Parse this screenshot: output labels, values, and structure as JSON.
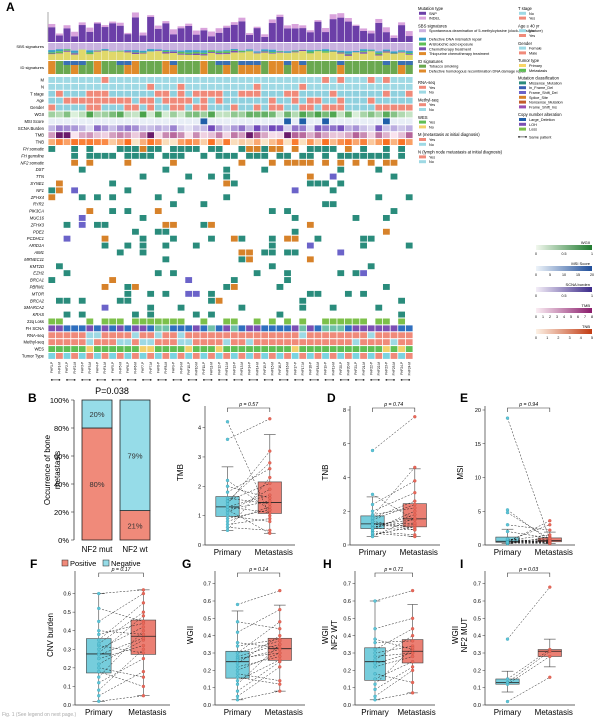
{
  "panel_letters": [
    "A",
    "B",
    "C",
    "D",
    "E",
    "F",
    "G",
    "H",
    "I"
  ],
  "colors": {
    "primary": "#5ec4d6",
    "metastasis": "#e8695a",
    "sbs_purple": "#7b4fb3",
    "snv_purple": "#6c3fa8",
    "indel_pink": "#d9a3dc",
    "teal": "#2a8c7c",
    "green": "#5fbf55",
    "orange": "#e08a2a",
    "blue": "#2f6fbf",
    "yellow_green": "#b7d23e",
    "salmon": "#f08a7a",
    "gray": "#bdbdbd"
  },
  "panelA": {
    "row_labels": [
      "",
      "SBS signatures",
      "ID signatures",
      "M",
      "N",
      "T stage",
      "Age",
      "Gender",
      "WGII",
      "MSI Score",
      "SCNA Burden",
      "TMB",
      "TNB",
      "FH somatic",
      "FH germline",
      "NF2 somatic",
      "DST",
      "TTN",
      "SYNE1",
      "NF1",
      "ZFHX4",
      "RYR2",
      "PIK3CA",
      "MUC16",
      "ZFHX3",
      "PDE2",
      "PCDHC1",
      "ARID1A",
      "AIM1",
      "MRNEC11",
      "KMT2D",
      "EZH2",
      "BRCA1",
      "PBRM1",
      "MTOR",
      "BRCA2",
      "SMARCA2",
      "KRAS",
      "22q Loss",
      "FH SCNA",
      "RNA-seq",
      "Methyl-seq",
      "WES",
      "Tumor Type"
    ],
    "sample_ids": [
      "FHF1-P",
      "FHF1-M",
      "FHF2-P",
      "FHF2-M",
      "FHF3-P",
      "FHF3-M",
      "FHF4-P",
      "FHF4-M",
      "FHF5-P",
      "FHF5-M",
      "FHF6-P",
      "FHF6-M",
      "FHF7-P",
      "FHF7-M",
      "FHF8-P",
      "FHF8-M",
      "FHF9-P",
      "FHF9-M",
      "FHF10-P",
      "FHF10-M",
      "FHF11-P",
      "FHF11-M",
      "FHF12-P",
      "FHF12-M",
      "FHF13-P",
      "FHF13-M",
      "FHF14-P",
      "FHF14-M",
      "FHF15-P",
      "FHF15-M",
      "FHF16-P",
      "FHF16-M",
      "FHF17-P",
      "FHF17-M",
      "FHF18-P",
      "FHF18-M",
      "FHF19-P",
      "FHF19-M",
      "FHF20-P",
      "FHF20-M",
      "FHF21-P",
      "FHF21-M",
      "FHF22-P",
      "FHF22-M",
      "FHF23-P",
      "FHF23-M",
      "FHF24-P",
      "FHF24-M"
    ],
    "legend_mid": {
      "mutation_type": {
        "title": "Mutation type",
        "items": [
          "SNP",
          "INDEL"
        ]
      },
      "sbs": {
        "title": "SBS signatures",
        "items": [
          "Spontaneous deamination of 5-methylcytosine (clock-like signature)",
          "Defective DNA mismatch repair",
          "Aristolochic acid exposure",
          "Chemotherapy treatment",
          "Thiopurine chemotherapy treatment"
        ]
      },
      "id": {
        "title": "ID signatures",
        "items": [
          "Tobacco smoking",
          "Defective homologous recombination DNA damage repair"
        ]
      },
      "rna": {
        "title": "RNA-seq",
        "items": [
          "Yes",
          "No"
        ]
      },
      "methyl": {
        "title": "Methyl-seq",
        "items": [
          "Yes",
          "No"
        ]
      },
      "wes": {
        "title": "WES",
        "items": [
          "Yes",
          "No"
        ]
      },
      "m": {
        "title": "M (metastasis at initial diagnosis)",
        "items": [
          "Yes",
          "No"
        ]
      },
      "n": {
        "title": "N (lymph node metastasis at initial diagnosis)",
        "items": [
          "Yes",
          "No"
        ]
      }
    },
    "legend_right": {
      "tstage": {
        "title": "T stage",
        "items": [
          "No",
          "Yes"
        ]
      },
      "age": {
        "title": "Age ≥ 40 yr",
        "items": [
          "No",
          "Yes"
        ]
      },
      "gender": {
        "title": "Gender",
        "items": [
          "Female",
          "Male"
        ]
      },
      "tumor": {
        "title": "Tumor type",
        "items": [
          "Primary",
          "Metastasis"
        ]
      },
      "mutclass": {
        "title": "Mutation classification",
        "items": [
          "Missense_Mutation",
          "In_Frame_Del",
          "Frame_Shift_Del",
          "Splice_Site",
          "Nonsense_Mutation",
          "Frame_Shift_Ins"
        ]
      },
      "cna": {
        "title": "Copy number alteration",
        "items": [
          "Large_Deletion",
          "LOH",
          "Loss"
        ]
      },
      "same_patient": "Same patient",
      "bars": [
        {
          "title": "WGII",
          "ticks": [
            "0",
            "0.5",
            "1"
          ]
        },
        {
          "title": "MSI Score",
          "ticks": [
            "0",
            "5",
            "10",
            "15",
            "20"
          ]
        },
        {
          "title": "SCNA burden",
          "ticks": [
            "0",
            "0.5",
            "1"
          ]
        },
        {
          "title": "TMB",
          "ticks": [
            "0",
            "1",
            "2",
            "3",
            "4",
            "5",
            "6",
            "7",
            "8"
          ]
        },
        {
          "title": "TNB",
          "ticks": [
            "0",
            "1",
            "2",
            "3",
            "4",
            "5"
          ]
        }
      ]
    }
  },
  "chart_data": [
    {
      "panel": "B",
      "type": "bar",
      "stacked": true,
      "title": "P=0.038",
      "ylabel": "Occurrence of bone metastasis",
      "yticks": [
        "0%",
        "20%",
        "40%",
        "60%",
        "80%",
        "100%"
      ],
      "categories": [
        "NF2 mut",
        "NF2 wt"
      ],
      "series": [
        {
          "name": "Positive",
          "values": [
            80,
            21
          ],
          "labels": [
            "80%",
            "21%"
          ]
        },
        {
          "name": "Negative",
          "values": [
            20,
            79
          ],
          "labels": [
            "20%",
            "79%"
          ]
        }
      ],
      "ylim": [
        0,
        100
      ]
    },
    {
      "panel": "C",
      "type": "box",
      "ylabel": "TMB",
      "pvalue": "p = 0.57",
      "categories": [
        "Primary",
        "Metastasis"
      ],
      "ylim": [
        0,
        4.6
      ],
      "yticks": [
        "0",
        "1",
        "2",
        "3",
        "4"
      ],
      "pairs": [
        [
          0.6,
          0.5
        ],
        [
          1.3,
          1.7
        ],
        [
          1.2,
          1.5
        ],
        [
          1.5,
          2.1
        ],
        [
          0.9,
          1.2
        ],
        [
          1.0,
          0.8
        ],
        [
          1.8,
          2.6
        ],
        [
          1.4,
          3.2
        ],
        [
          2.2,
          1.2
        ],
        [
          1.1,
          1.9
        ],
        [
          0.7,
          0.9
        ],
        [
          1.6,
          1.4
        ],
        [
          0.5,
          2.3
        ],
        [
          1.3,
          1.1
        ],
        [
          2.0,
          1.6
        ],
        [
          3.6,
          4.3
        ],
        [
          4.2,
          1.0
        ],
        [
          1.2,
          0.4
        ],
        [
          0.8,
          1.3
        ],
        [
          1.5,
          2.8
        ]
      ]
    },
    {
      "panel": "D",
      "type": "box",
      "ylabel": "TNB",
      "pvalue": "p = 0.74",
      "categories": [
        "Primary",
        "Metastasis"
      ],
      "ylim": [
        0,
        8
      ],
      "yticks": [
        "0",
        "2",
        "4",
        "6",
        "8"
      ],
      "pairs": [
        [
          0.8,
          0.6
        ],
        [
          1.2,
          1.5
        ],
        [
          1.0,
          1.8
        ],
        [
          1.5,
          2.4
        ],
        [
          0.6,
          1.1
        ],
        [
          1.3,
          0.9
        ],
        [
          2.0,
          3.1
        ],
        [
          1.7,
          4.6
        ],
        [
          3.0,
          1.5
        ],
        [
          1.1,
          1.2
        ],
        [
          0.9,
          2.0
        ],
        [
          1.4,
          1.0
        ],
        [
          5.6,
          7.6
        ],
        [
          1.6,
          2.6
        ],
        [
          0.7,
          0.5
        ],
        [
          1.2,
          1.3
        ],
        [
          2.4,
          3.8
        ],
        [
          1.0,
          0.9
        ],
        [
          0.5,
          1.6
        ],
        [
          1.8,
          2.2
        ]
      ]
    },
    {
      "panel": "E",
      "type": "box",
      "ylabel": "MSI",
      "pvalue": "p = 0.94",
      "categories": [
        "Primary",
        "Metastasis"
      ],
      "ylim": [
        0,
        20
      ],
      "yticks": [
        "0",
        "5",
        "10",
        "15",
        "20"
      ],
      "pairs": [
        [
          0.3,
          0.5
        ],
        [
          0.5,
          0.4
        ],
        [
          0.2,
          1.2
        ],
        [
          5.2,
          0.6
        ],
        [
          0.4,
          0.3
        ],
        [
          0.6,
          3.0
        ],
        [
          4.8,
          0.9
        ],
        [
          0.3,
          0.2
        ],
        [
          0.7,
          1.5
        ],
        [
          18.8,
          0.8
        ],
        [
          0.5,
          0.4
        ],
        [
          3.0,
          2.2
        ],
        [
          0.8,
          0.6
        ],
        [
          0.4,
          3.6
        ],
        [
          0.6,
          0.5
        ],
        [
          2.0,
          1.0
        ],
        [
          0.3,
          0.7
        ],
        [
          0.9,
          0.3
        ],
        [
          0.5,
          0.9
        ],
        [
          0.4,
          0.6
        ]
      ]
    },
    {
      "panel": "F",
      "type": "box",
      "ylabel": "CNV burden",
      "pvalue": "p = 0.17",
      "categories": [
        "Primary",
        "Metastasis"
      ],
      "ylim": [
        0,
        0.7
      ],
      "yticks": [
        "0.0",
        "0.1",
        "0.2",
        "0.3",
        "0.4",
        "0.5",
        "0.6"
      ],
      "pairs": [
        [
          0.05,
          0.18
        ],
        [
          0.22,
          0.35
        ],
        [
          0.3,
          0.42
        ],
        [
          0.12,
          0.25
        ],
        [
          0.4,
          0.38
        ],
        [
          0.28,
          0.48
        ],
        [
          0.18,
          0.1
        ],
        [
          0.35,
          0.55
        ],
        [
          0.52,
          0.45
        ],
        [
          0.08,
          0.3
        ],
        [
          0.25,
          0.32
        ],
        [
          0.45,
          0.6
        ],
        [
          0.32,
          0.28
        ],
        [
          0.15,
          0.4
        ],
        [
          0.38,
          0.44
        ],
        [
          0.02,
          0.05
        ],
        [
          0.27,
          0.36
        ],
        [
          0.2,
          0.15
        ],
        [
          0.6,
          0.62
        ],
        [
          0.33,
          0.5
        ]
      ]
    },
    {
      "panel": "G",
      "type": "box",
      "ylabel": "WGII",
      "pvalue": "p = 0.14",
      "categories": [
        "Primary",
        "Metastasis"
      ],
      "ylim": [
        0,
        0.75
      ],
      "yticks": [
        "0.0",
        "0.1",
        "0.2",
        "0.3",
        "0.4",
        "0.5",
        "0.6",
        "0.7"
      ],
      "pairs": [
        [
          0.05,
          0.22
        ],
        [
          0.2,
          0.3
        ],
        [
          0.28,
          0.35
        ],
        [
          0.14,
          0.26
        ],
        [
          0.36,
          0.33
        ],
        [
          0.24,
          0.4
        ],
        [
          0.16,
          0.12
        ],
        [
          0.3,
          0.48
        ],
        [
          0.58,
          0.66
        ],
        [
          0.08,
          0.25
        ],
        [
          0.22,
          0.28
        ],
        [
          0.42,
          0.55
        ],
        [
          0.27,
          0.3
        ],
        [
          0.12,
          0.35
        ],
        [
          0.34,
          0.38
        ],
        [
          0.03,
          0.08
        ],
        [
          0.26,
          0.32
        ],
        [
          0.18,
          0.14
        ],
        [
          0.48,
          0.44
        ],
        [
          0.3,
          0.37
        ]
      ]
    },
    {
      "panel": "H",
      "type": "box",
      "ylabel": "WGII NF2 WT",
      "pvalue": "p = 0.71",
      "categories": [
        "Primary",
        "Metastasis"
      ],
      "ylim": [
        0,
        0.75
      ],
      "yticks": [
        "0.0",
        "0.1",
        "0.2",
        "0.3",
        "0.4",
        "0.5",
        "0.6",
        "0.7"
      ],
      "pairs": [
        [
          0.05,
          0.2
        ],
        [
          0.22,
          0.28
        ],
        [
          0.3,
          0.34
        ],
        [
          0.15,
          0.25
        ],
        [
          0.38,
          0.32
        ],
        [
          0.26,
          0.4
        ],
        [
          0.18,
          0.13
        ],
        [
          0.32,
          0.44
        ],
        [
          0.6,
          0.66
        ],
        [
          0.09,
          0.22
        ],
        [
          0.24,
          0.3
        ],
        [
          0.44,
          0.5
        ],
        [
          0.28,
          0.3
        ],
        [
          0.12,
          0.33
        ],
        [
          0.36,
          0.37
        ],
        [
          0.03,
          0.07
        ]
      ]
    },
    {
      "panel": "I",
      "type": "box",
      "ylabel": "WGII NF2 MUT",
      "pvalue": "p = 0.03",
      "categories": [
        "Primary",
        "Metastasis"
      ],
      "ylim": [
        0,
        0.75
      ],
      "yticks": [
        "0.0",
        "0.1",
        "0.2",
        "0.3",
        "0.4",
        "0.5",
        "0.6",
        "0.7"
      ],
      "pairs": [
        [
          0.12,
          0.28
        ],
        [
          0.15,
          0.32
        ],
        [
          0.38,
          0.68
        ],
        [
          0.13,
          0.31
        ],
        [
          0.02,
          0.16
        ]
      ]
    }
  ],
  "legendB": [
    "Positive",
    "Negative"
  ],
  "footer": "Fig. 1 (See legend on next page.)"
}
